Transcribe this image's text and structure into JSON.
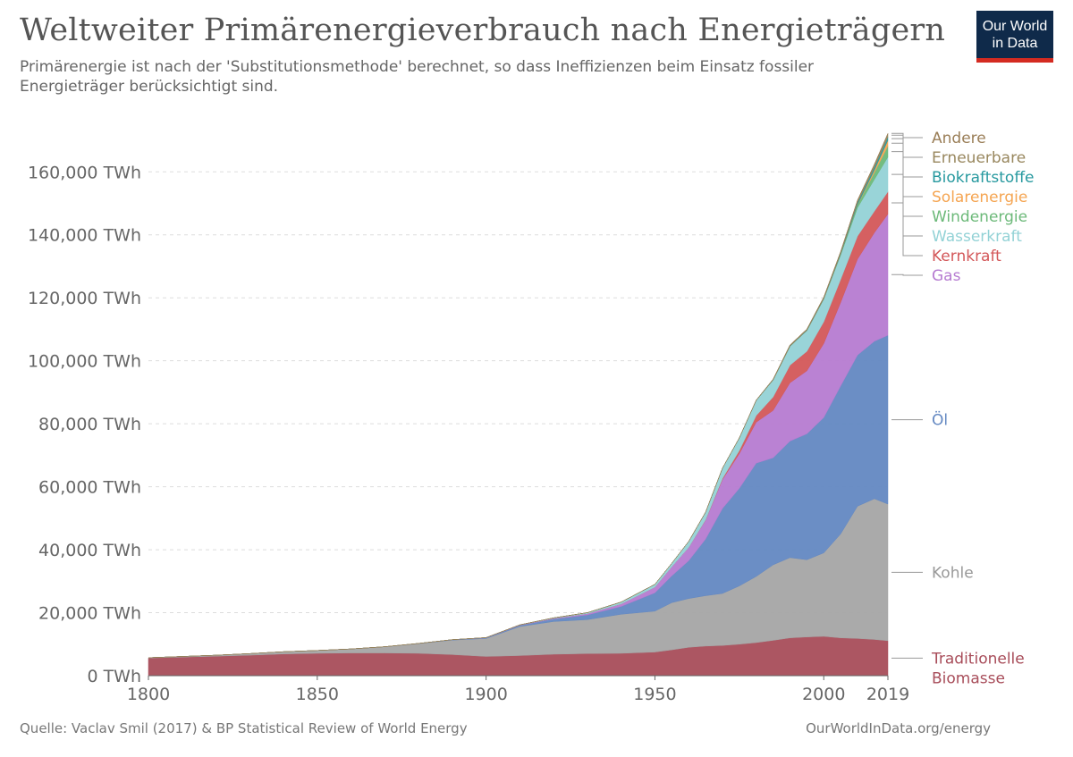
{
  "header": {
    "title": "Weltweiter Primärenergieverbrauch nach Energieträgern",
    "subtitle": "Primärenergie ist nach der 'Substitutionsmethode' berechnet, so dass Ineffizienzen beim Einsatz fossiler Energieträger berücksichtigt sind.",
    "logo_line1": "Our World",
    "logo_line2": "in Data"
  },
  "footer": {
    "source": "Quelle: Vaclav Smil (2017) & BP Statistical Review of World Energy",
    "url": "OurWorldInData.org/energy"
  },
  "chart_data": {
    "type": "area",
    "stacked": true,
    "unit": "TWh",
    "x": [
      1800,
      1810,
      1820,
      1830,
      1840,
      1850,
      1860,
      1870,
      1880,
      1890,
      1900,
      1910,
      1920,
      1930,
      1940,
      1950,
      1955,
      1960,
      1965,
      1970,
      1975,
      1980,
      1985,
      1990,
      1995,
      2000,
      2005,
      2010,
      2015,
      2019
    ],
    "series": [
      {
        "name": "Traditionelle Biomasse",
        "color": "#a84d5a",
        "values": [
          5600,
          5900,
          6200,
          6500,
          6900,
          7100,
          7200,
          7200,
          7100,
          6700,
          6100,
          6400,
          6800,
          7000,
          7100,
          7500,
          8200,
          9000,
          9400,
          9600,
          10000,
          10500,
          11200,
          12000,
          12300,
          12500,
          12000,
          11800,
          11500,
          11100
        ]
      },
      {
        "name": "Kohle",
        "color": "#a5a5a5",
        "values": [
          100,
          200,
          300,
          500,
          700,
          900,
          1300,
          2000,
          3100,
          4600,
          5700,
          9200,
          10400,
          10800,
          12400,
          13000,
          15000,
          15500,
          16000,
          16500,
          18500,
          21000,
          24000,
          25500,
          24500,
          26500,
          33000,
          42000,
          44700,
          43400
        ]
      },
      {
        "name": "Öl",
        "color": "#6388c2",
        "values": [
          0,
          0,
          0,
          0,
          0,
          0,
          0,
          10,
          50,
          100,
          200,
          400,
          800,
          1500,
          2500,
          5800,
          8500,
          12000,
          18000,
          27000,
          31000,
          36000,
          34000,
          37000,
          40000,
          43000,
          47000,
          48000,
          50000,
          53600
        ]
      },
      {
        "name": "Gas",
        "color": "#b67bd1",
        "values": [
          0,
          0,
          0,
          0,
          0,
          0,
          0,
          0,
          10,
          30,
          60,
          100,
          200,
          400,
          800,
          1800,
          2900,
          4200,
          6000,
          9200,
          11000,
          13000,
          15000,
          18500,
          20000,
          23500,
          26500,
          30500,
          34500,
          38500
        ]
      },
      {
        "name": "Kernkraft",
        "color": "#d35759",
        "values": [
          0,
          0,
          0,
          0,
          0,
          0,
          0,
          0,
          0,
          0,
          0,
          0,
          0,
          0,
          0,
          0,
          0,
          20,
          100,
          300,
          1000,
          2100,
          4300,
          5600,
          6200,
          6900,
          7300,
          7300,
          6800,
          7100
        ]
      },
      {
        "name": "Wasserkraft",
        "color": "#93d2d6",
        "values": [
          0,
          0,
          0,
          0,
          0,
          0,
          0,
          0,
          0,
          0,
          20,
          50,
          150,
          300,
          600,
          900,
          1100,
          1900,
          2400,
          3300,
          4000,
          4800,
          5400,
          6000,
          6600,
          7200,
          7700,
          9000,
          10100,
          11000
        ]
      },
      {
        "name": "Windenergie",
        "color": "#6cb979",
        "values": [
          0,
          0,
          0,
          0,
          0,
          0,
          0,
          0,
          0,
          0,
          0,
          0,
          0,
          0,
          0,
          0,
          0,
          0,
          0,
          0,
          0,
          0,
          0,
          10,
          20,
          80,
          300,
          900,
          2200,
          3500
        ]
      },
      {
        "name": "Solarenergie",
        "color": "#f5a552",
        "values": [
          0,
          0,
          0,
          0,
          0,
          0,
          0,
          0,
          0,
          0,
          0,
          0,
          0,
          0,
          0,
          0,
          0,
          0,
          0,
          0,
          0,
          0,
          0,
          0,
          0,
          5,
          20,
          100,
          800,
          1800
        ]
      },
      {
        "name": "Biokraftstoffe",
        "color": "#27999f",
        "values": [
          0,
          0,
          0,
          0,
          0,
          0,
          0,
          0,
          0,
          0,
          0,
          0,
          0,
          0,
          0,
          0,
          0,
          0,
          0,
          0,
          0,
          10,
          50,
          100,
          100,
          150,
          300,
          700,
          900,
          1100
        ]
      },
      {
        "name": "Erneuerbare",
        "color": "#98875e",
        "values": [
          0,
          0,
          0,
          0,
          0,
          0,
          0,
          0,
          0,
          0,
          0,
          0,
          0,
          0,
          0,
          0,
          0,
          0,
          0,
          0,
          0,
          100,
          200,
          300,
          350,
          400,
          500,
          700,
          900,
          1100
        ]
      },
      {
        "name": "Andere",
        "color": "#9a7e57",
        "values": [
          0,
          0,
          0,
          0,
          0,
          0,
          0,
          0,
          0,
          0,
          0,
          0,
          0,
          0,
          0,
          0,
          0,
          0,
          0,
          0,
          0,
          0,
          0,
          0,
          0,
          0,
          0,
          0,
          0,
          0
        ]
      }
    ],
    "xlim": [
      1800,
      2019
    ],
    "ylim": [
      0,
      172000
    ],
    "x_ticks": [
      "1800",
      "1850",
      "1900",
      "1950",
      "2000",
      "2019"
    ],
    "x_tick_values": [
      1800,
      1850,
      1900,
      1950,
      2000,
      2019
    ],
    "y_ticks": [
      "0 TWh",
      "20,000 TWh",
      "40,000 TWh",
      "60,000 TWh",
      "80,000 TWh",
      "100,000 TWh",
      "120,000 TWh",
      "140,000 TWh",
      "160,000 TWh"
    ],
    "y_tick_values": [
      0,
      20000,
      40000,
      60000,
      80000,
      100000,
      120000,
      140000,
      160000
    ],
    "grid": true,
    "legend_placement": "right",
    "label_colors": {
      "Andere": "#9a7e57",
      "Erneuerbare": "#98875e",
      "Biokraftstoffe": "#27999f",
      "Solarenergie": "#f5a552",
      "Windenergie": "#6cb979",
      "Wasserkraft": "#93d2d6",
      "Kernkraft": "#d35759",
      "Gas": "#b67bd1",
      "Öl": "#6388c2",
      "Kohle": "#999999",
      "Traditionelle Biomasse": "#a84d5a"
    }
  }
}
